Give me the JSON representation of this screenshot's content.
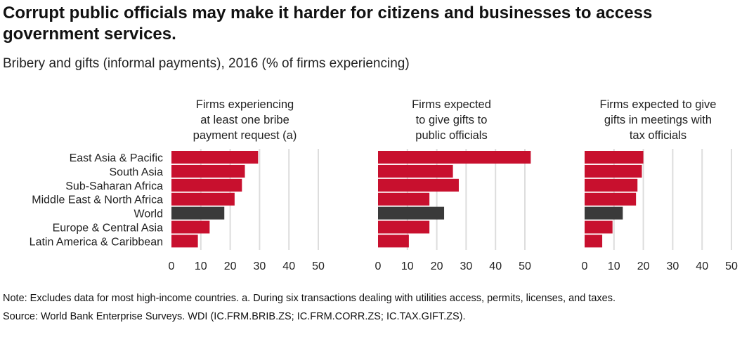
{
  "header": {
    "title": "Corrupt public officials may make it harder for citizens and businesses to access government services.",
    "subtitle": "Bribery and gifts (informal payments), 2016 (% of firms experiencing)"
  },
  "footer": {
    "note": "Note: Excludes data for most high-income countries. a. During six transactions dealing with utilities access, permits, licenses, and taxes.",
    "source": "Source: World Bank Enterprise Surveys. WDI (IC.FRM.BRIB.ZS; IC.FRM.CORR.ZS; IC.TAX.GIFT.ZS)."
  },
  "chart_data": {
    "type": "bar",
    "orientation": "horizontal",
    "categories": [
      "East Asia & Pacific",
      "South Asia",
      "Sub-Saharan Africa",
      "Middle East & North Africa",
      "World",
      "Europe & Central Asia",
      "Latin America & Caribbean"
    ],
    "highlight_category": "World",
    "colors": {
      "bar": "#c8102e",
      "highlight": "#3a3a3a",
      "grid": "#dddddd"
    },
    "xlim": [
      0,
      50
    ],
    "xticks": [
      0,
      10,
      20,
      30,
      40,
      50
    ],
    "grid": true,
    "panels": [
      {
        "title": [
          "Firms experiencing",
          "at least one bribe",
          "payment request (a)"
        ],
        "values": [
          29.5,
          25,
          24,
          21.5,
          18,
          13,
          9
        ]
      },
      {
        "title": [
          "Firms expected",
          "to give gifts to",
          "public officials"
        ],
        "values": [
          52,
          25.5,
          27.5,
          17.5,
          22.5,
          17.5,
          10.5
        ]
      },
      {
        "title": [
          "Firms expected to give",
          "gifts in meetings with",
          "tax officials"
        ],
        "values": [
          20,
          19.5,
          18,
          17.5,
          13,
          9.5,
          6
        ]
      }
    ]
  }
}
